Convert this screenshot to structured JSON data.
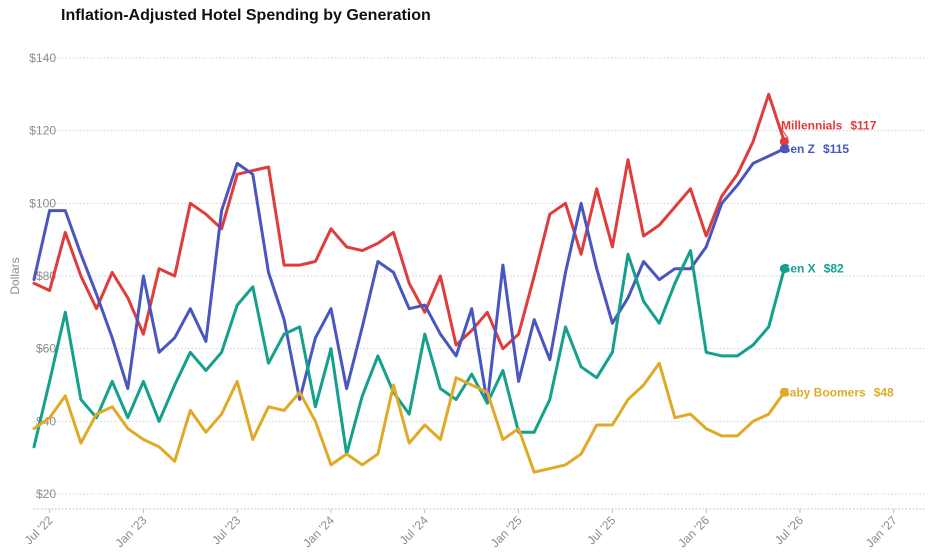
{
  "chart_data": {
    "type": "line",
    "title": "Inflation-Adjusted Hotel Spending by Generation",
    "ylabel": "Dollars",
    "xlabel": "",
    "ylim": [
      20,
      140
    ],
    "yticks": [
      20,
      40,
      60,
      80,
      100,
      120,
      140
    ],
    "ytick_labels": [
      "$20",
      "$40",
      "$60",
      "$80",
      "$100",
      "$120",
      "$140"
    ],
    "xlim": [
      "2022-06",
      "2027-03"
    ],
    "xticks": [
      "2022-07",
      "2023-01",
      "2023-07",
      "2024-01",
      "2024-07",
      "2025-01",
      "2025-07",
      "2026-01",
      "2026-07",
      "2027-01"
    ],
    "xtick_labels": [
      "Jul '22",
      "Jan '23",
      "Jul '23",
      "Jan '24",
      "Jul '24",
      "Jan '25",
      "Jul '25",
      "Jan '26",
      "Jul '26",
      "Jan '27"
    ],
    "grid": "horizontal-dotted",
    "x_start": "2022-06",
    "x_step": "month",
    "series": [
      {
        "name": "Millennials",
        "color": "#e03c3c",
        "end_value_label": "$117",
        "values": [
          78,
          76,
          92,
          80,
          71,
          81,
          74,
          64,
          82,
          80,
          100,
          97,
          93,
          108,
          109,
          110,
          83,
          83,
          84,
          93,
          88,
          87,
          89,
          92,
          78,
          70,
          80,
          61,
          65,
          70,
          60,
          64,
          80,
          97,
          100,
          86,
          104,
          88,
          112,
          91,
          94,
          99,
          104,
          91,
          102,
          108,
          117,
          130,
          117
        ]
      },
      {
        "name": "Gen Z",
        "color": "#4a56c0",
        "end_value_label": "$115",
        "values": [
          79,
          98,
          98,
          86,
          75,
          63,
          49,
          80,
          59,
          63,
          71,
          62,
          98,
          111,
          108,
          81,
          68,
          46,
          63,
          71,
          49,
          66,
          84,
          81,
          71,
          72,
          64,
          58,
          71,
          45,
          83,
          51,
          68,
          57,
          81,
          100,
          82,
          67,
          74,
          84,
          79,
          82,
          82,
          88,
          100,
          105,
          111,
          113,
          115
        ]
      },
      {
        "name": "Gen X",
        "color": "#14a08c",
        "end_value_label": "$82",
        "values": [
          33,
          51,
          70,
          46,
          41,
          51,
          41,
          51,
          40,
          50,
          59,
          54,
          59,
          72,
          77,
          56,
          64,
          66,
          44,
          60,
          31,
          47,
          58,
          48,
          42,
          64,
          49,
          46,
          53,
          45,
          54,
          37,
          37,
          46,
          66,
          55,
          52,
          59,
          86,
          73,
          67,
          78,
          87,
          59,
          58,
          58,
          61,
          66,
          82
        ]
      },
      {
        "name": "Baby Boomers",
        "color": "#e0aa28",
        "end_value_label": "$48",
        "values": [
          38,
          41,
          47,
          34,
          42,
          44,
          38,
          35,
          33,
          29,
          43,
          37,
          42,
          51,
          35,
          44,
          43,
          48,
          40,
          28,
          31,
          28,
          31,
          50,
          34,
          39,
          35,
          52,
          50,
          48,
          35,
          38,
          26,
          27,
          28,
          31,
          39,
          39,
          46,
          50,
          56,
          41,
          42,
          38,
          36,
          36,
          40,
          42,
          48
        ]
      }
    ]
  }
}
